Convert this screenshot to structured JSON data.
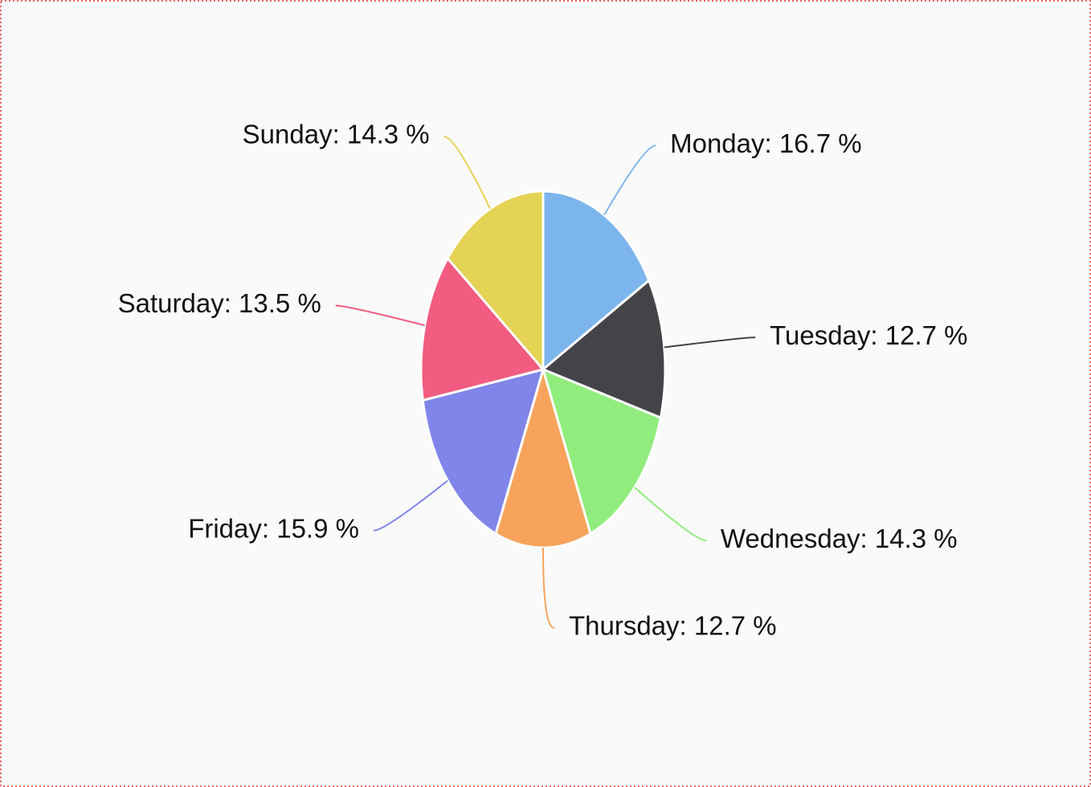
{
  "chart_data": {
    "type": "pie",
    "values": [
      16.7,
      12.7,
      14.3,
      12.7,
      15.9,
      13.5,
      14.3
    ],
    "value_labels": [
      "Monday: 16.7 %",
      "Tuesday: 12.7 %",
      "Wednesday: 14.3 %",
      "Thursday: 12.7 %",
      "Friday: 15.9 %",
      "Saturday: 13.5 %",
      "Sunday: 14.3 %"
    ],
    "colors": [
      "#7cb5ec",
      "#434348",
      "#90ed7d",
      "#f7a35c",
      "#8085e9",
      "#f15c80",
      "#e4d354"
    ]
  }
}
